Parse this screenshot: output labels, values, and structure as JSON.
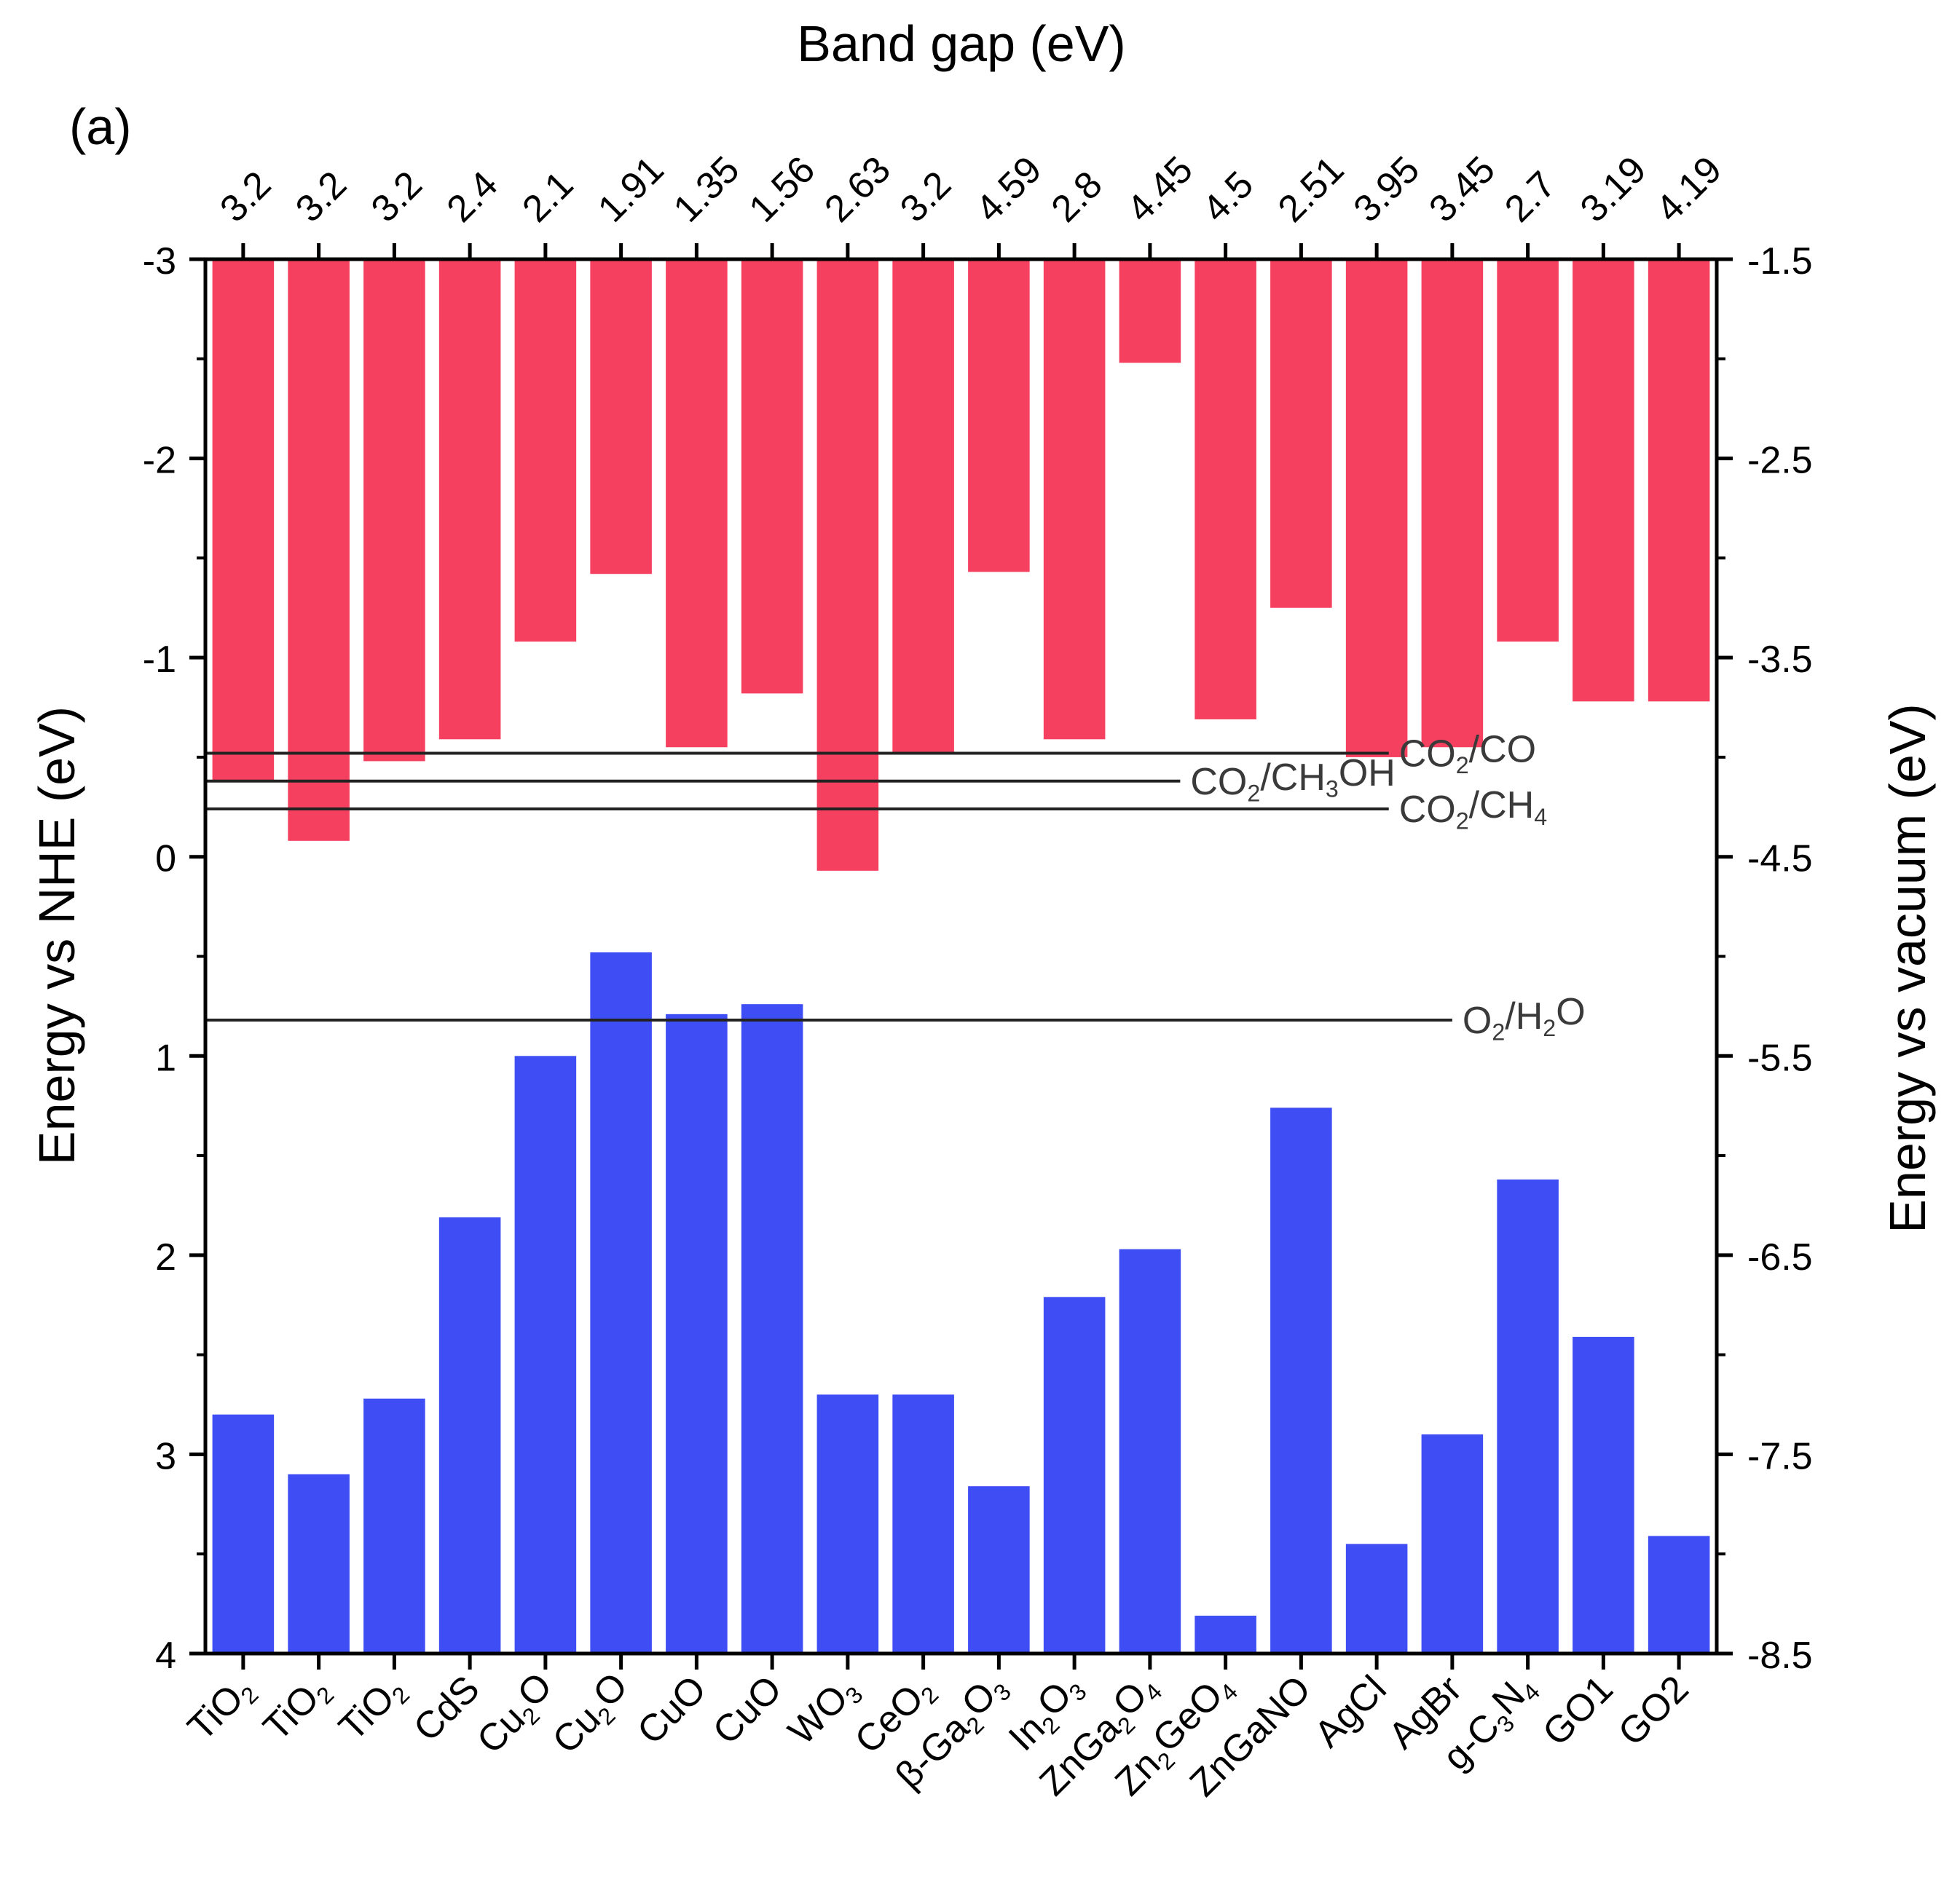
{
  "chart_data": {
    "type": "bar",
    "panel_label": "(a)",
    "top_axis_title": "Band gap (eV)",
    "left_axis_title": "Energy vs NHE (eV)",
    "right_axis_title": "Energy vs vacuum (eV)",
    "left_axis": {
      "min": -3,
      "max": 4,
      "inverted": true,
      "ticks": [
        "-3",
        "-2",
        "-1",
        "0",
        "1",
        "2",
        "3",
        "4"
      ]
    },
    "right_axis": {
      "ticks": [
        "-1.5",
        "-2.5",
        "-3.5",
        "-4.5",
        "-5.5",
        "-6.5",
        "-7.5",
        "-8.5"
      ]
    },
    "materials": [
      {
        "label": "TiO₂",
        "band_gap": "3.2",
        "cb": -0.38,
        "vb": 2.8
      },
      {
        "label": "TiO₂",
        "band_gap": "3.2",
        "cb": -0.08,
        "vb": 3.1
      },
      {
        "label": "TiO₂",
        "band_gap": "3.2",
        "cb": -0.48,
        "vb": 2.72
      },
      {
        "label": "CdS",
        "band_gap": "2.4",
        "cb": -0.59,
        "vb": 1.81
      },
      {
        "label": "Cu₂O",
        "band_gap": "2.1",
        "cb": -1.08,
        "vb": 1.0
      },
      {
        "label": "Cu₂O",
        "band_gap": "1.91",
        "cb": -1.42,
        "vb": 0.48
      },
      {
        "label": "CuO",
        "band_gap": "1.35",
        "cb": -0.55,
        "vb": 0.79
      },
      {
        "label": "CuO",
        "band_gap": "1.56",
        "cb": -0.82,
        "vb": 0.74
      },
      {
        "label": "WO₃",
        "band_gap": "2.63",
        "cb": 0.07,
        "vb": 2.7
      },
      {
        "label": "CeO₂",
        "band_gap": "3.2",
        "cb": -0.52,
        "vb": 2.7
      },
      {
        "label": "β-Ga₂O₃",
        "band_gap": "4.59",
        "cb": -1.43,
        "vb": 3.16
      },
      {
        "label": "In₂O₃",
        "band_gap": "2.8",
        "cb": -0.59,
        "vb": 2.21
      },
      {
        "label": "ZnGa₂O₄",
        "band_gap": "4.45",
        "cb": -2.48,
        "vb": 1.97
      },
      {
        "label": "Zn₂GeO₄",
        "band_gap": "4.5",
        "cb": -0.69,
        "vb": 3.81
      },
      {
        "label": "ZnGaNO",
        "band_gap": "2.51",
        "cb": -1.25,
        "vb": 1.26
      },
      {
        "label": "AgCl",
        "band_gap": "3.95",
        "cb": -0.5,
        "vb": 3.45
      },
      {
        "label": "AgBr",
        "band_gap": "3.45",
        "cb": -0.55,
        "vb": 2.9
      },
      {
        "label": "g-C₃N₄",
        "band_gap": "2.7",
        "cb": -1.08,
        "vb": 1.62
      },
      {
        "label": "GO1",
        "band_gap": "3.19",
        "cb": -0.78,
        "vb": 2.41
      },
      {
        "label": "GO2",
        "band_gap": "4.19",
        "cb": -0.78,
        "vb": 3.41
      }
    ],
    "reference_lines": [
      {
        "label": "CO₂/CO",
        "value": -0.52,
        "extent_end": 0.783
      },
      {
        "label": "CO₂/CH₃OH",
        "value": -0.38,
        "extent_end": 0.645
      },
      {
        "label": "CO₂/CH₄",
        "value": -0.24,
        "extent_end": 0.783
      },
      {
        "label": "O₂/H₂O",
        "value": 0.82,
        "extent_end": 0.825
      }
    ],
    "colors": {
      "conduction_band": "#f5415f",
      "valence_band": "#3e4ef4",
      "axis": "#000000",
      "reference_line": "#222222"
    }
  }
}
